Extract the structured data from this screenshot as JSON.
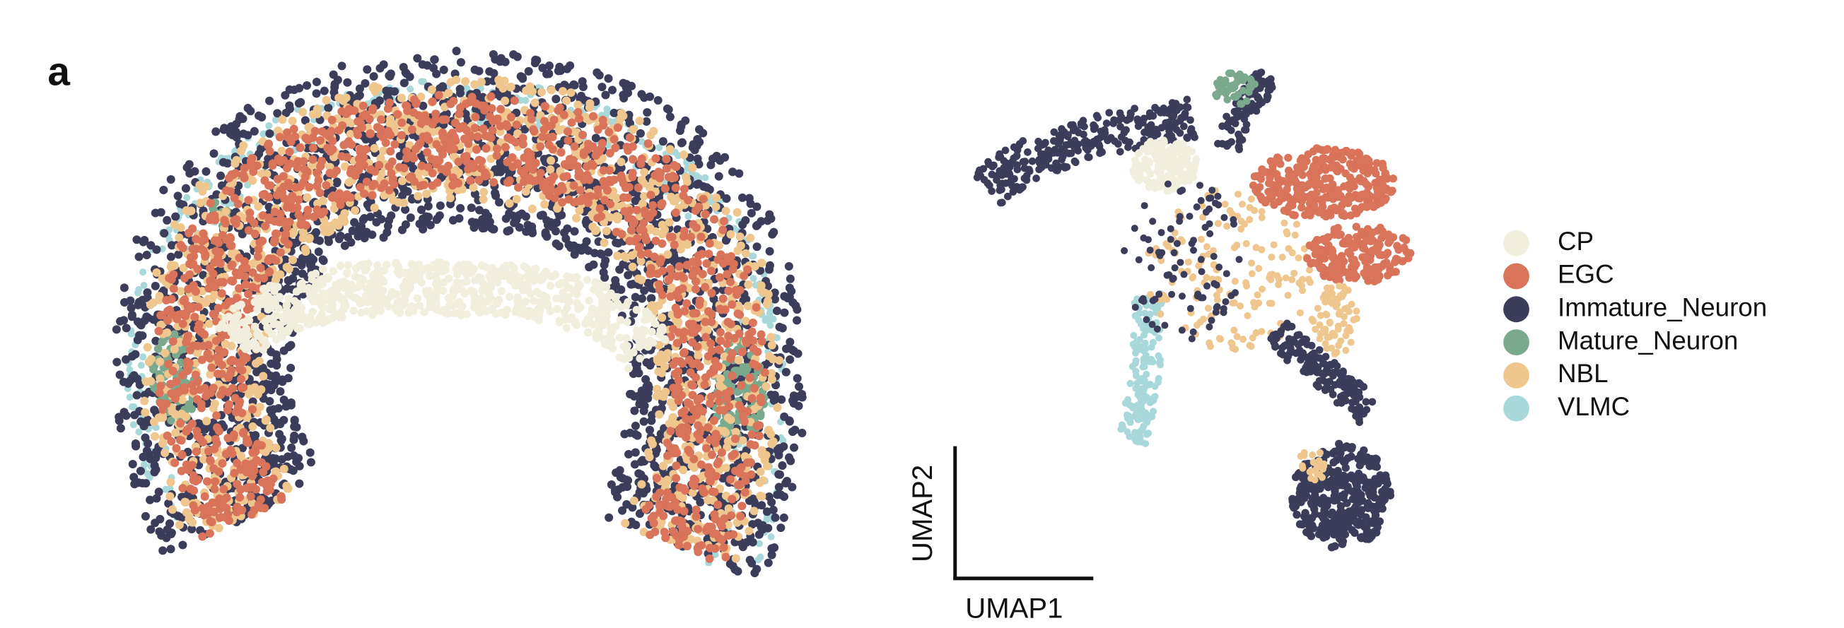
{
  "panel_label": "a",
  "umap": {
    "xlabel": "UMAP1",
    "ylabel": "UMAP2"
  },
  "legend": [
    {
      "name": "CP",
      "color": "#f1eedd"
    },
    {
      "name": "EGC",
      "color": "#d9735a"
    },
    {
      "name": "Immature_Neuron",
      "color": "#3b3d5a"
    },
    {
      "name": "Mature_Neuron",
      "color": "#7aa98e"
    },
    {
      "name": "NBL",
      "color": "#efc68e"
    },
    {
      "name": "VLMC",
      "color": "#a9d8da"
    }
  ]
}
